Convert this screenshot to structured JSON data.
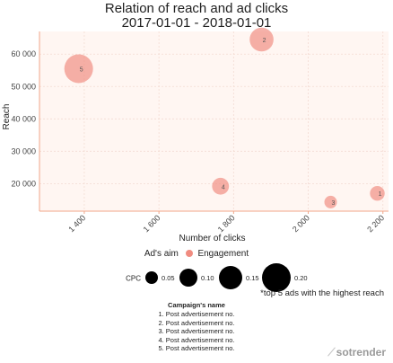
{
  "title_line1": "Relation of reach and ad clicks",
  "title_line2": "2017-01-01 - 2018-01-01",
  "chart_data": {
    "type": "scatter",
    "xlabel": "Number of clicks",
    "ylabel": "Reach",
    "xlim": [
      1280,
      2215
    ],
    "ylim": [
      11500,
      67000
    ],
    "x_ticks": [
      1400,
      1600,
      1800,
      2000,
      2200
    ],
    "x_tick_labels": [
      "1 400",
      "1 600",
      "1 800",
      "2 000",
      "2 200"
    ],
    "y_ticks": [
      20000,
      30000,
      40000,
      50000,
      60000
    ],
    "y_tick_labels": [
      "20 000",
      "30 000",
      "40 000",
      "50 000",
      "60 000"
    ],
    "grid": true,
    "points": [
      {
        "label": "2",
        "x": 1875,
        "y": 64500,
        "cpc": 0.155
      },
      {
        "label": "5",
        "x": 1385,
        "y": 55500,
        "cpc": 0.2
      },
      {
        "label": "4",
        "x": 1765,
        "y": 19200,
        "cpc": 0.09
      },
      {
        "label": "3",
        "x": 2060,
        "y": 14300,
        "cpc": 0.05
      },
      {
        "label": "1",
        "x": 2185,
        "y": 17000,
        "cpc": 0.07
      }
    ],
    "colors": {
      "engagement": "#f08c80",
      "axis": "#f0a78a",
      "plot_bg": "#fff6f2"
    }
  },
  "aim_legend": {
    "title": "Ad's aim",
    "item": "Engagement"
  },
  "cpc_legend": {
    "title": "CPC",
    "values": [
      0.05,
      0.1,
      0.15,
      0.2
    ],
    "labels": [
      "0.05",
      "0.10",
      "0.15",
      "0.20"
    ]
  },
  "note": "*top 5 ads with the highest reach",
  "campaigns": {
    "title": "Campaign's name",
    "items": [
      "1. Post advertisement no.",
      "2. Post advertisement no.",
      "3. Post advertisement no.",
      "4. Post advertisement no.",
      "5. Post advertisement no."
    ]
  },
  "brand": "sotrender"
}
